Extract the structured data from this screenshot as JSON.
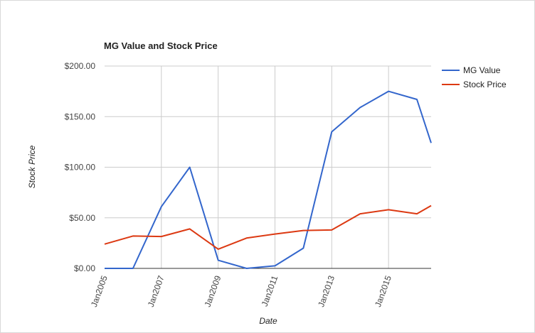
{
  "chart_data": {
    "type": "line",
    "title": "MG Value and Stock Price",
    "xlabel": "Date",
    "ylabel": "Stock Price",
    "y_ticks": [
      "$0.00",
      "$50.00",
      "$100.00",
      "$150.00",
      "$200.00"
    ],
    "ylim": [
      0,
      200
    ],
    "x_ticks": [
      "Jan2005",
      "Jan2007",
      "Jan2009",
      "Jan2011",
      "Jan2013",
      "Jan2015"
    ],
    "xlim": [
      "2005-01",
      "2016-07"
    ],
    "grid": true,
    "legend_position": "right",
    "x": [
      "2005-01",
      "2006-01",
      "2007-01",
      "2008-01",
      "2009-01",
      "2010-01",
      "2011-01",
      "2012-01",
      "2013-01",
      "2014-01",
      "2015-01",
      "2016-01",
      "2016-07"
    ],
    "series": [
      {
        "name": "MG Value",
        "color": "#3366cc",
        "values": [
          0,
          0,
          61,
          100,
          8,
          0,
          2.5,
          20,
          135,
          159,
          175,
          167,
          124
        ]
      },
      {
        "name": "Stock Price",
        "color": "#dc3912",
        "values": [
          24,
          32,
          31.5,
          39,
          19,
          30,
          34,
          37.5,
          38,
          54,
          58,
          54,
          62
        ]
      }
    ]
  }
}
